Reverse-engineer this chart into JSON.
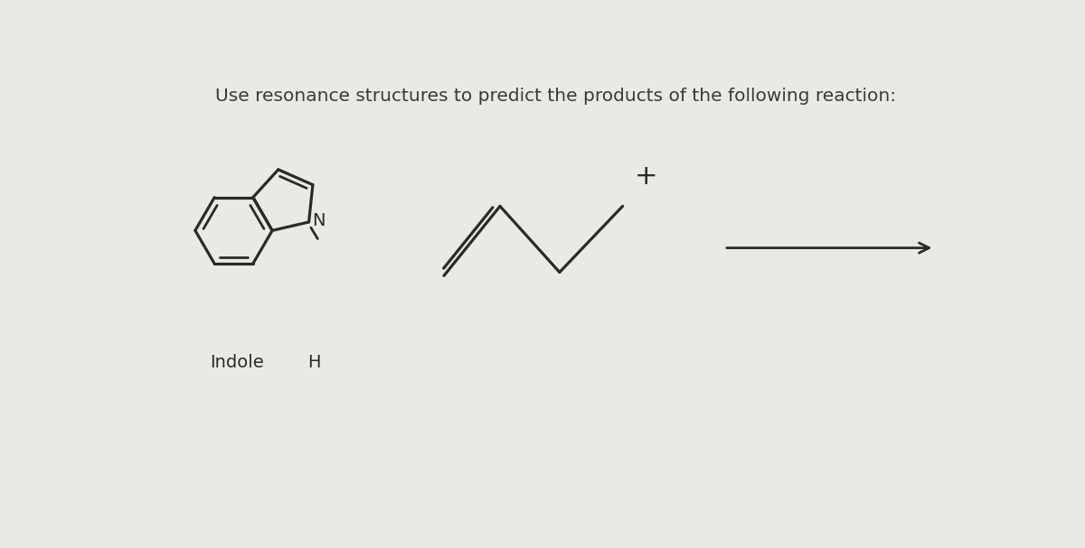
{
  "title": "Use resonance structures to predict the products of the following reaction:",
  "title_fontsize": 14.5,
  "title_color": "#3a3a3a",
  "background_color": "#eaeae4",
  "line_color": "#2a2a2a",
  "line_width": 2.0,
  "indole_label": "Indole",
  "nh_label": "H",
  "plus_sign": "+"
}
